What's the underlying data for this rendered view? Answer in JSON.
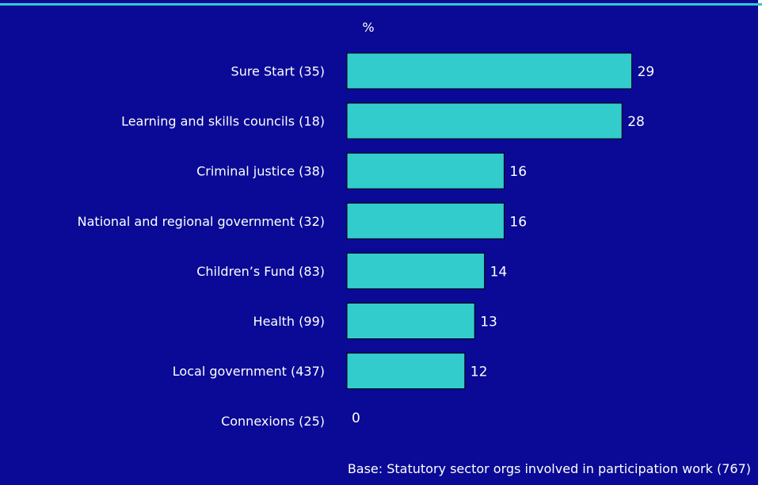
{
  "chart_data": {
    "type": "bar",
    "orientation": "horizontal",
    "unit_label": "%",
    "categories": [
      "Sure Start (35)",
      "Learning and skills councils (18)",
      "Criminal justice (38)",
      "National and regional government (32)",
      "Children’s Fund (83)",
      "Health (99)",
      "Local government (437)",
      "Connexions (25)"
    ],
    "values": [
      29,
      28,
      16,
      16,
      14,
      13,
      12,
      0
    ],
    "footnote": "Base: Statutory sector orgs involved in participation work (767)",
    "grid": false
  },
  "colors": {
    "background": "#0a0a96",
    "bar": "#33cccc",
    "text": "#ffffff",
    "rule": "#33cccc"
  }
}
